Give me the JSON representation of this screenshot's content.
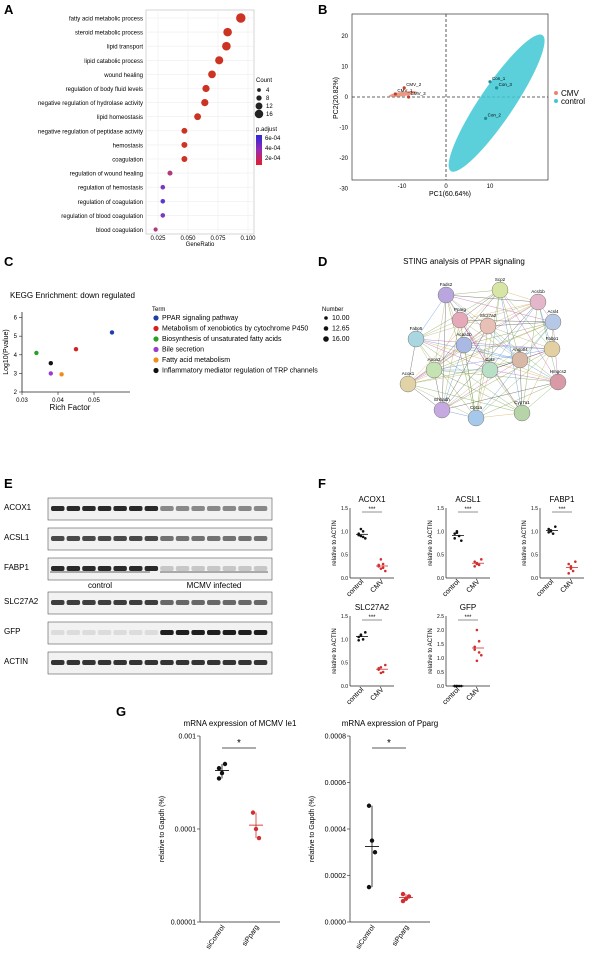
{
  "panels": {
    "A": {
      "letter": "A",
      "xlabel": "GeneRatio",
      "xticks": [
        "0.025",
        "0.050",
        "0.075",
        "0.100"
      ],
      "legend_count_title": "Count",
      "legend_count_values": [
        "4",
        "8",
        "12",
        "16"
      ],
      "legend_padj_title": "p.adjust",
      "legend_padj_values": [
        "6e-04",
        "4e-04",
        "2e-04"
      ],
      "terms": [
        {
          "label": "fatty acid metabolic process",
          "ratio": 0.094,
          "count": 16,
          "color": "#cc3322"
        },
        {
          "label": "steroid metabolic process",
          "ratio": 0.083,
          "count": 14,
          "color": "#cc3322"
        },
        {
          "label": "lipid transport",
          "ratio": 0.082,
          "count": 14,
          "color": "#cc3322"
        },
        {
          "label": "lipid catabolic process",
          "ratio": 0.076,
          "count": 13,
          "color": "#cc3322"
        },
        {
          "label": "wound healing",
          "ratio": 0.07,
          "count": 12,
          "color": "#cc3322"
        },
        {
          "label": "regulation of body fluid levels",
          "ratio": 0.065,
          "count": 11,
          "color": "#cc3322"
        },
        {
          "label": "negative regulation of hydrolase activity",
          "ratio": 0.064,
          "count": 11,
          "color": "#cc3322"
        },
        {
          "label": "lipid homeostasis",
          "ratio": 0.058,
          "count": 10,
          "color": "#cc3322"
        },
        {
          "label": "negative regulation of peptidase activity",
          "ratio": 0.047,
          "count": 8,
          "color": "#cc3322"
        },
        {
          "label": "hemostasis",
          "ratio": 0.047,
          "count": 8,
          "color": "#cc3322"
        },
        {
          "label": "coagulation",
          "ratio": 0.047,
          "count": 8,
          "color": "#cc3322"
        },
        {
          "label": "regulation of wound healing",
          "ratio": 0.035,
          "count": 6,
          "color": "#b03a7a"
        },
        {
          "label": "regulation of hemostasis",
          "ratio": 0.029,
          "count": 5,
          "color": "#7a3ac0"
        },
        {
          "label": "regulation of coagulation",
          "ratio": 0.029,
          "count": 5,
          "color": "#5a3ad0"
        },
        {
          "label": "regulation of blood coagulation",
          "ratio": 0.029,
          "count": 5,
          "color": "#7a3ac0"
        },
        {
          "label": "blood coagulation",
          "ratio": 0.023,
          "count": 4,
          "color": "#b03a7a"
        }
      ]
    },
    "B": {
      "letter": "B",
      "xlabel": "PC1(60.64%)",
      "ylabel": "PC2(20.82%)",
      "xticks": [
        "-10",
        "0",
        "10"
      ],
      "yticks": [
        "20",
        "10",
        "0",
        "-10",
        "-20",
        "-30"
      ],
      "legend": [
        {
          "name": "CMV",
          "color": "#e8866e"
        },
        {
          "name": "control",
          "color": "#3ec8d4"
        }
      ],
      "cmv_points": [
        {
          "label": "CMV_1",
          "x": -11.5,
          "y": 1.0
        },
        {
          "label": "CMV_2",
          "x": -9.5,
          "y": 3.0
        },
        {
          "label": "CMV_3",
          "x": -8.5,
          "y": 0.0
        }
      ],
      "control_points": [
        {
          "label": "Con_1",
          "x": 10.0,
          "y": 5.0
        },
        {
          "label": "Con_2",
          "x": 9.0,
          "y": -7.0
        },
        {
          "label": "Con_3",
          "x": 11.5,
          "y": 3.0
        }
      ]
    },
    "C": {
      "letter": "C",
      "title": "KEGG Enrichment: down regulated",
      "xlabel": "Rich Factor",
      "ylabel": "Log10(Pvalue)",
      "xticks": [
        "0.03",
        "0.04",
        "0.05"
      ],
      "yticks": [
        "6",
        "5",
        "4",
        "3",
        "2"
      ],
      "term_header": "Term",
      "number_header": "Number",
      "number_values": [
        "10.00",
        "12.65",
        "16.00"
      ],
      "terms": [
        {
          "label": "PPAR signaling pathway",
          "color": "#1f3fa8",
          "x": 0.055,
          "y": 5.2
        },
        {
          "label": "Metabolism of xenobiotics by cytochrome P450",
          "color": "#d62020",
          "x": 0.045,
          "y": 4.3
        },
        {
          "label": "Biosynthesis of unsaturated fatty acids",
          "color": "#2aa02a",
          "x": 0.034,
          "y": 4.1
        },
        {
          "label": "Bile secretion",
          "color": "#9b3bd0",
          "x": 0.038,
          "y": 3.0
        },
        {
          "label": "Fatty acid metabolism",
          "color": "#f08c1a",
          "x": 0.041,
          "y": 2.95
        },
        {
          "label": "Inflammatory mediator regulation of TRP channels",
          "color": "#111111",
          "x": 0.038,
          "y": 3.55
        }
      ]
    },
    "D": {
      "letter": "D",
      "title": "STING analysis of PPAR signaling",
      "nodes": [
        {
          "label": "Fads2",
          "fill": "#b9a6de"
        },
        {
          "label": "Scp2",
          "fill": "#d7e6a4"
        },
        {
          "label": "Acsl1b",
          "fill": "#e3b6c9"
        },
        {
          "label": "Acsl4",
          "fill": "#b6c8e5"
        },
        {
          "label": "Fabp1",
          "fill": "#e2cfa2"
        },
        {
          "label": "Fabp5",
          "fill": "#a9d6e0"
        },
        {
          "label": "Apoa2",
          "fill": "#c5e3b2"
        },
        {
          "label": "Slc27a2",
          "fill": "#e9c0b5"
        },
        {
          "label": "Hmgcs2",
          "fill": "#d99aa7"
        },
        {
          "label": "Cyp7a1",
          "fill": "#b7d3a8"
        },
        {
          "label": "Cpt1a",
          "fill": "#a6c8ea"
        },
        {
          "label": "Ehhadh",
          "fill": "#c6a9e0"
        },
        {
          "label": "Acox1",
          "fill": "#e2d3a6"
        },
        {
          "label": "Cpt2",
          "fill": "#b8e0c7"
        },
        {
          "label": "Angptl4",
          "fill": "#d9b9a5"
        },
        {
          "label": "Acaa1b",
          "fill": "#a9b9e3"
        },
        {
          "label": "Pparg",
          "fill": "#e5a9b9"
        }
      ]
    },
    "E": {
      "letter": "E",
      "bands": [
        "ACOX1",
        "ACSL1",
        "FABP1",
        "SLC27A2",
        "GFP",
        "ACTIN"
      ],
      "group_control": "control",
      "group_infected": "MCMV infected"
    },
    "F": {
      "letter": "F",
      "ylabel": "relative to ACTIN",
      "xlabels": [
        "control",
        "CMV"
      ],
      "sig": "***",
      "plots": [
        {
          "title": "ACOX1",
          "yticks": [
            "1.5",
            "1.0",
            "0.5",
            "0.0"
          ],
          "ymax": 1.5,
          "control": [
            0.95,
            0.9,
            1.0,
            0.85,
            0.92,
            1.05,
            0.88
          ],
          "cmv": [
            0.25,
            0.2,
            0.3,
            0.15,
            0.28,
            0.4,
            0.22
          ]
        },
        {
          "title": "ACSL1",
          "yticks": [
            "1.5",
            "1.0",
            "0.5",
            "0.0"
          ],
          "ymax": 1.5,
          "control": [
            0.95,
            1.0,
            0.9,
            0.8,
            0.85,
            0.97
          ],
          "cmv": [
            0.35,
            0.3,
            0.28,
            0.4,
            0.25,
            0.32
          ]
        },
        {
          "title": "FABP1",
          "yticks": [
            "1.5",
            "1.0",
            "0.5",
            "0.0"
          ],
          "ymax": 1.5,
          "control": [
            1.05,
            1.0,
            0.95,
            1.1,
            0.98,
            1.02
          ],
          "cmv": [
            0.3,
            0.2,
            0.15,
            0.35,
            0.1,
            0.25
          ]
        },
        {
          "title": "SLC27A2",
          "yticks": [
            "1.5",
            "1.0",
            "0.5",
            "0.0"
          ],
          "ymax": 1.5,
          "control": [
            1.05,
            1.1,
            1.0,
            1.15,
            0.98,
            1.08
          ],
          "cmv": [
            0.35,
            0.4,
            0.3,
            0.45,
            0.38,
            0.28
          ]
        },
        {
          "title": "GFP",
          "yticks": [
            "2.5",
            "2.0",
            "1.5",
            "1.0",
            "0.5",
            "0.0"
          ],
          "ymax": 2.5,
          "control": [
            0.0,
            0.0,
            0.0,
            0.0,
            0.0,
            0.0
          ],
          "cmv": [
            1.3,
            0.9,
            1.6,
            1.1,
            1.4,
            2.0,
            1.2
          ]
        }
      ]
    },
    "G": {
      "letter": "G",
      "sig": "*",
      "ylabel": "relative to Gapdh (%)",
      "plots": [
        {
          "title": "mRNA expression of MCMV Ie1",
          "xlabels": [
            "siControl",
            "siPparg"
          ],
          "yticks": [
            "0.001",
            "0.0001",
            "0.00001"
          ],
          "log": true,
          "control": [
            0.00045,
            0.0004,
            0.0005,
            0.00035
          ],
          "treat": [
            0.00015,
            0.0001,
            8e-05
          ]
        },
        {
          "title": "mRNA expression of Pparg",
          "xlabels": [
            "siControl",
            "siPparg"
          ],
          "yticks": [
            "0.0008",
            "0.0006",
            "0.0004",
            "0.0002",
            "0.0000"
          ],
          "log": false,
          "control": [
            0.0005,
            0.00035,
            0.0003,
            0.00015
          ],
          "treat": [
            0.00012,
            0.0001,
            0.00011,
            9e-05
          ]
        }
      ]
    }
  }
}
